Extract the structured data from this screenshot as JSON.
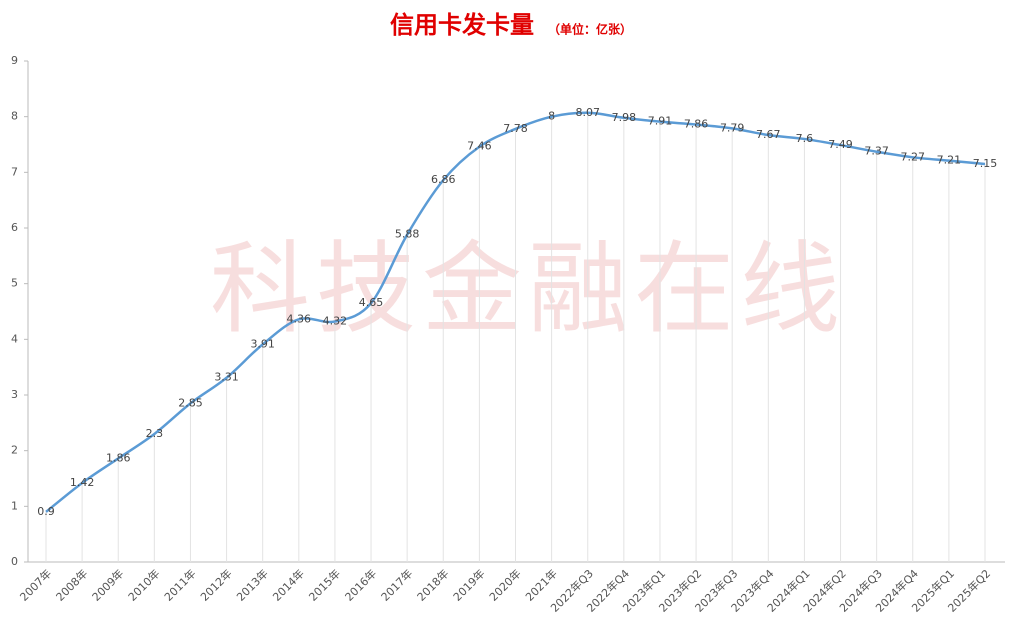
{
  "chart_data": {
    "type": "line",
    "title": "信用卡发卡量",
    "subtitle": "（单位：亿张）",
    "watermark": "科技金融在线",
    "categories": [
      "2007年",
      "2008年",
      "2009年",
      "2010年",
      "2011年",
      "2012年",
      "2013年",
      "2014年",
      "2015年",
      "2016年",
      "2017年",
      "2018年",
      "2019年",
      "2020年",
      "2021年",
      "2022年Q3",
      "2022年Q4",
      "2023年Q1",
      "2023年Q2",
      "2023年Q3",
      "2023年Q4",
      "2024年Q1",
      "2024年Q2",
      "2024年Q3",
      "2024年Q4",
      "2025年Q1",
      "2025年Q2"
    ],
    "values": [
      0.9,
      1.42,
      1.86,
      2.3,
      2.85,
      3.31,
      3.91,
      4.36,
      4.32,
      4.65,
      5.88,
      6.86,
      7.46,
      7.78,
      8,
      8.07,
      7.98,
      7.91,
      7.86,
      7.79,
      7.67,
      7.6,
      7.49,
      7.37,
      7.27,
      7.21,
      7.15
    ],
    "color": "#5b9bd5",
    "ylim": [
      0,
      9
    ],
    "yticks": [
      0,
      1,
      2,
      3,
      4,
      5,
      6,
      7,
      8,
      9
    ],
    "grid": true
  }
}
